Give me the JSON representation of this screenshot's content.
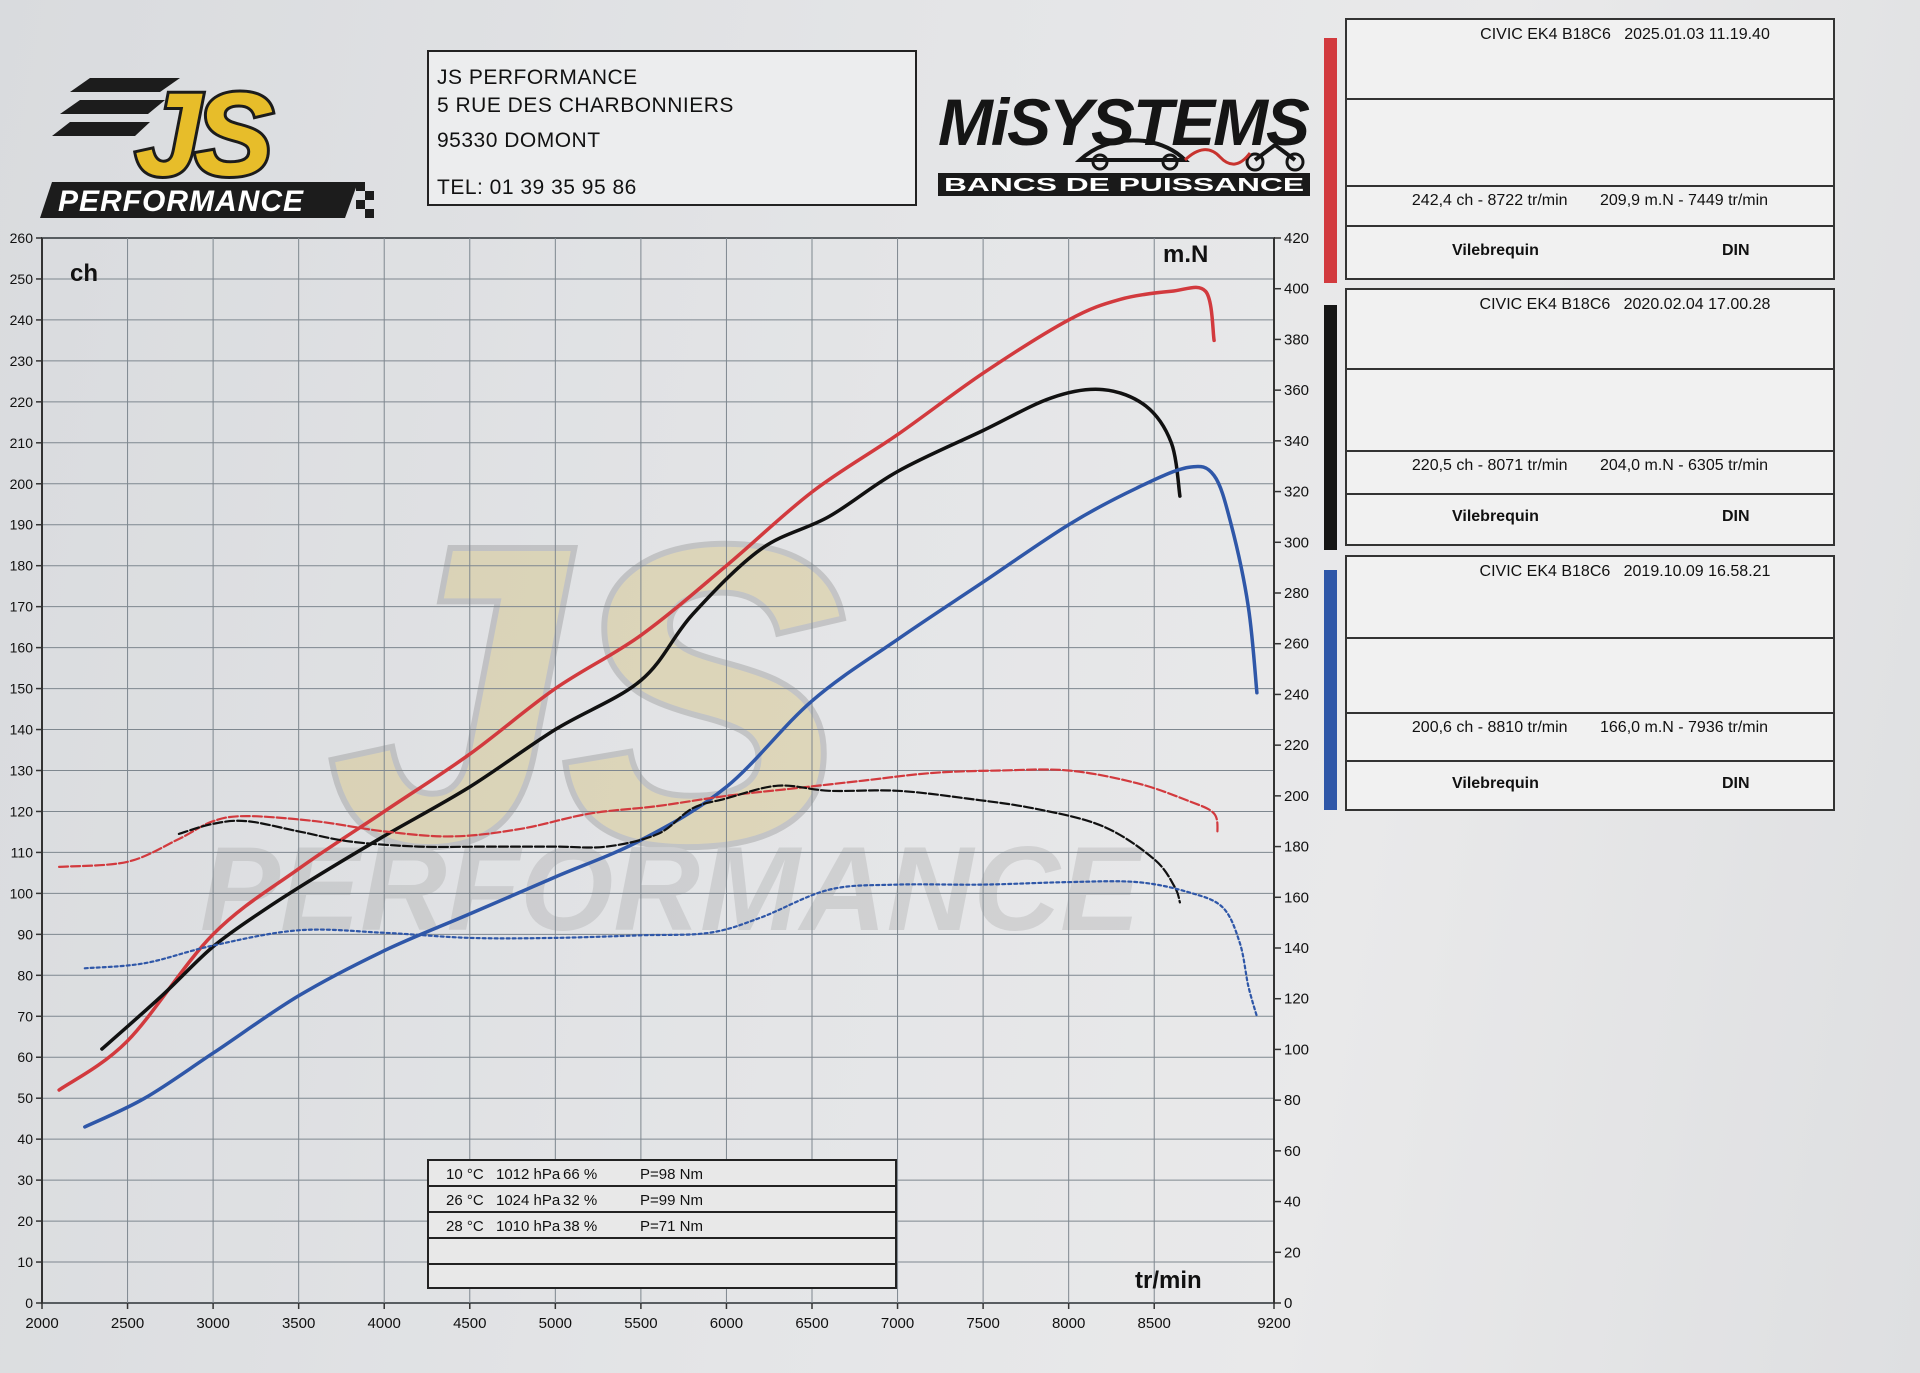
{
  "header": {
    "logo_main": "JS",
    "logo_sub": "PERFORMANCE",
    "address_lines": [
      "JS PERFORMANCE",
      "5 RUE DES CHARBONNIERS",
      "95330 DOMONT",
      "TEL: 01 39 35 95 86"
    ],
    "brand_main": "MiSYSTEMS",
    "brand_sub": "BANCS DE PUISSANCE"
  },
  "runs": [
    {
      "label": "CIVIC EK4 B18C6",
      "date": "2025.01.03 11.19.40",
      "power": "242,4 ch - 8722 tr/min",
      "torque": "209,9 m.N - 7449 tr/min",
      "measure": "Vilebrequin",
      "norm": "DIN",
      "color": "#d23a3e"
    },
    {
      "label": "CIVIC EK4 B18C6",
      "date": "2020.02.04 17.00.28",
      "power": "220,5 ch - 8071 tr/min",
      "torque": "204,0 m.N - 6305 tr/min",
      "measure": "Vilebrequin",
      "norm": "DIN",
      "color": "#111111"
    },
    {
      "label": "CIVIC EK4 B18C6",
      "date": "2019.10.09 16.58.21",
      "power": "200,6 ch - 8810 tr/min",
      "torque": "166,0 m.N - 7936 tr/min",
      "measure": "Vilebrequin",
      "norm": "DIN",
      "color": "#2f57a8"
    }
  ],
  "conditions": [
    {
      "temp": "10 °C",
      "pressure": "1012 hPa",
      "humidity": "66 %",
      "loss": "P=98 Nm"
    },
    {
      "temp": "26 °C",
      "pressure": "1024 hPa",
      "humidity": "32 %",
      "loss": "P=99 Nm"
    },
    {
      "temp": "28 °C",
      "pressure": "1010 hPa",
      "humidity": "38 %",
      "loss": "P=71 Nm"
    }
  ],
  "chart_data": {
    "type": "line",
    "xlabel": "tr/min",
    "ylabel": "ch",
    "y2label": "m.N",
    "xlim": [
      2000,
      9200
    ],
    "ylim": [
      0,
      260
    ],
    "y2lim": [
      0,
      420
    ],
    "x_ticks": [
      2000,
      2500,
      3000,
      3500,
      4000,
      4500,
      5000,
      5500,
      6000,
      6500,
      7000,
      7500,
      8000,
      8500,
      9200
    ],
    "y_ticks": [
      0,
      10,
      20,
      30,
      40,
      50,
      60,
      70,
      80,
      90,
      100,
      110,
      120,
      130,
      140,
      150,
      160,
      170,
      180,
      190,
      200,
      210,
      220,
      230,
      240,
      250,
      260
    ],
    "y2_ticks": [
      0,
      20,
      40,
      60,
      80,
      100,
      120,
      140,
      160,
      180,
      200,
      220,
      240,
      260,
      280,
      300,
      320,
      340,
      360,
      380,
      400,
      420
    ],
    "grid": true,
    "series": [
      {
        "run": 0,
        "kind": "power",
        "axis": "left",
        "x": [
          2100,
          2500,
          3000,
          3500,
          4000,
          4500,
          5000,
          5500,
          6000,
          6500,
          7000,
          7500,
          8000,
          8300,
          8600,
          8800,
          8850
        ],
        "y": [
          52,
          64,
          90,
          106,
          120,
          134,
          150,
          163,
          180,
          198,
          212,
          227,
          240,
          245,
          247,
          247,
          235
        ]
      },
      {
        "run": 1,
        "kind": "power",
        "axis": "left",
        "x": [
          2350,
          2700,
          3000,
          3300,
          3600,
          4000,
          4500,
          5000,
          5500,
          5800,
          6200,
          6600,
          7000,
          7500,
          7900,
          8200,
          8450,
          8600,
          8650
        ],
        "y": [
          62,
          75,
          87,
          96,
          104,
          114,
          126,
          140,
          152,
          168,
          184,
          192,
          203,
          213,
          221,
          223,
          219,
          210,
          197
        ]
      },
      {
        "run": 2,
        "kind": "power",
        "axis": "left",
        "x": [
          2250,
          2600,
          3000,
          3500,
          4000,
          4500,
          5000,
          5500,
          6000,
          6500,
          7000,
          7500,
          8000,
          8400,
          8700,
          8850,
          8950,
          9050,
          9100
        ],
        "y": [
          43,
          50,
          61,
          75,
          86,
          95,
          104,
          113,
          126,
          147,
          162,
          176,
          190,
          199,
          204,
          202,
          190,
          170,
          149
        ]
      },
      {
        "run": 0,
        "kind": "torque",
        "axis": "right",
        "x": [
          2100,
          2500,
          2800,
          3000,
          3200,
          3600,
          4000,
          4400,
          4800,
          5200,
          5600,
          6000,
          6400,
          6800,
          7200,
          7600,
          8000,
          8400,
          8700,
          8850,
          8870
        ],
        "y": [
          172,
          174,
          183,
          190,
          192,
          190,
          186,
          184,
          187,
          193,
          196,
          200,
          203,
          206,
          209,
          210,
          210,
          205,
          198,
          193,
          185
        ]
      },
      {
        "run": 1,
        "kind": "torque",
        "axis": "right",
        "x": [
          2800,
          3000,
          3200,
          3500,
          3800,
          4200,
          4600,
          5000,
          5300,
          5600,
          5800,
          6000,
          6300,
          6600,
          7000,
          7400,
          7800,
          8200,
          8500,
          8620,
          8650
        ],
        "y": [
          185,
          189,
          190,
          186,
          182,
          180,
          180,
          180,
          180,
          185,
          195,
          199,
          204,
          202,
          202,
          199,
          195,
          188,
          175,
          164,
          158
        ]
      },
      {
        "run": 2,
        "kind": "torque",
        "axis": "right",
        "x": [
          2250,
          2600,
          3000,
          3500,
          4000,
          4500,
          5000,
          5500,
          5900,
          6200,
          6600,
          7000,
          7500,
          8000,
          8400,
          8700,
          8900,
          9000,
          9050,
          9100
        ],
        "y": [
          132,
          134,
          141,
          147,
          146,
          144,
          144,
          145,
          146,
          152,
          163,
          165,
          165,
          166,
          166,
          162,
          156,
          142,
          125,
          113
        ]
      }
    ]
  }
}
